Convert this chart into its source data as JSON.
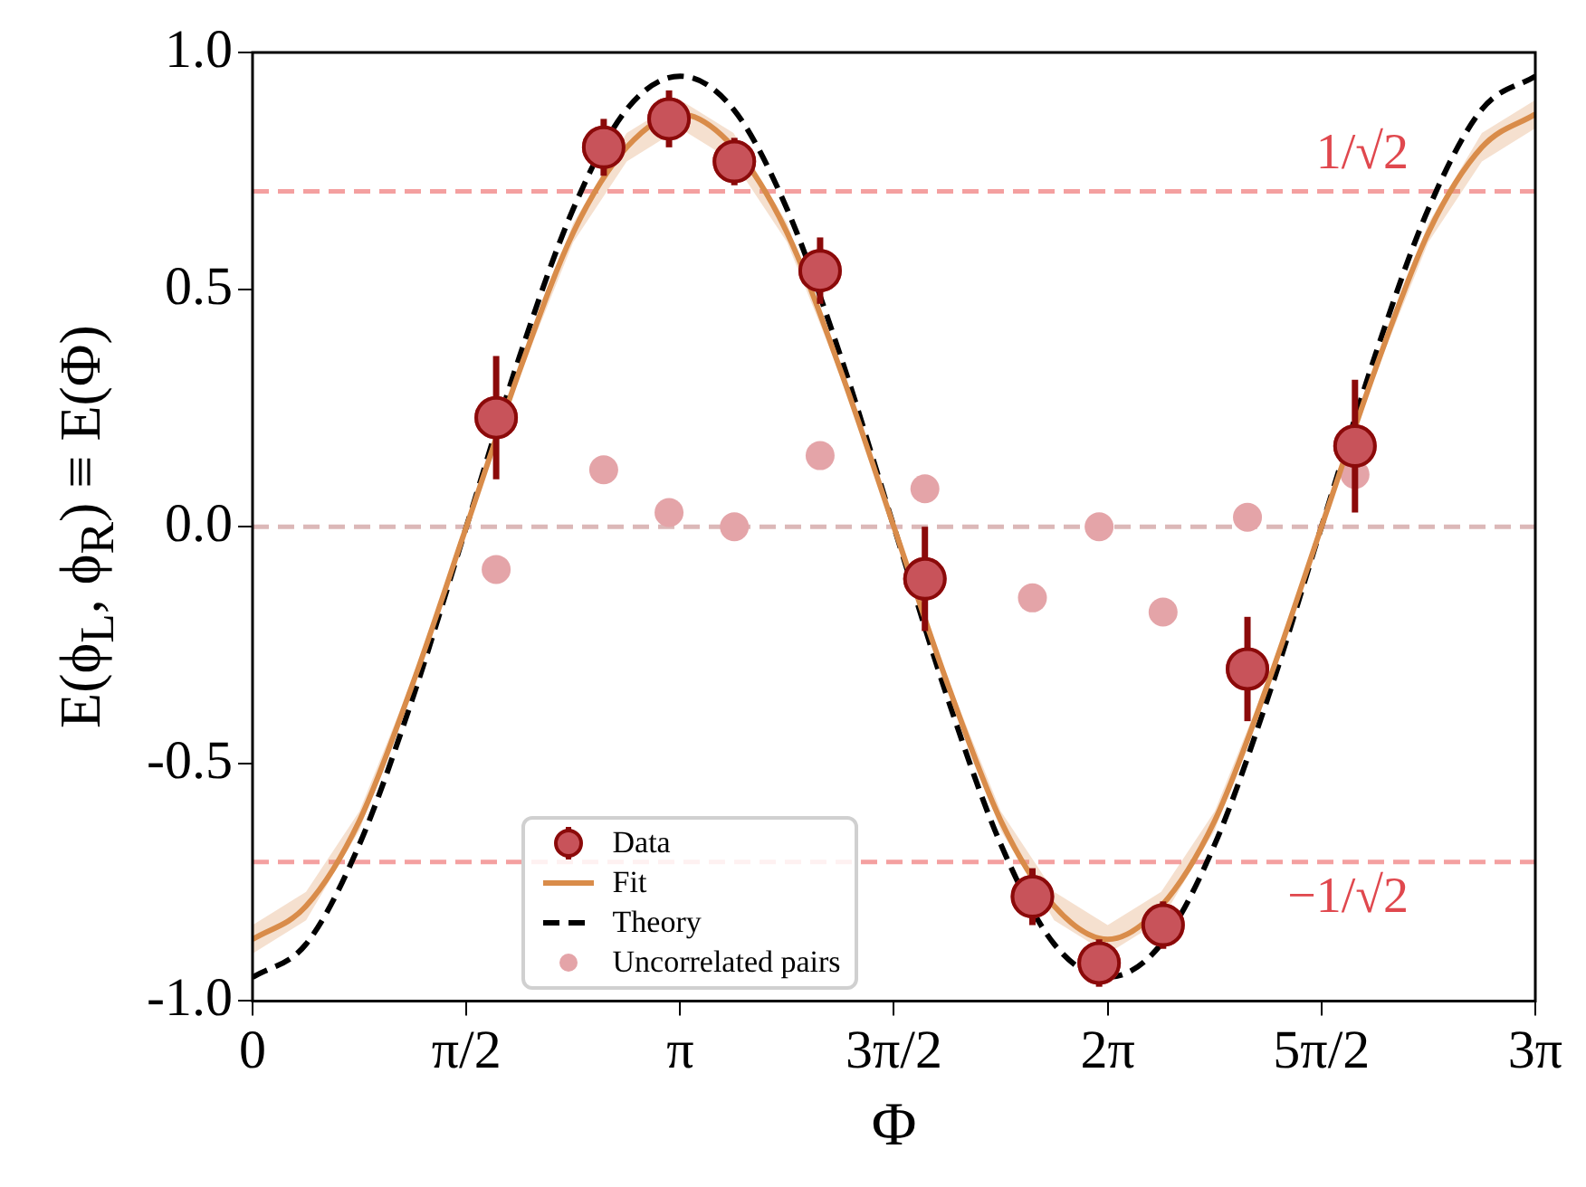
{
  "chart_data": {
    "type": "scatter",
    "xlabel": "Φ",
    "ylabel": "E(ϕ$_{L}$, ϕ$_{R}$) ≡ E(Φ)",
    "xlim": [
      0,
      9.4248
    ],
    "ylim": [
      -1.0,
      1.0
    ],
    "xticks": [
      {
        "value": 0,
        "label": "0"
      },
      {
        "value": 1.5708,
        "label": "π/2"
      },
      {
        "value": 3.1416,
        "label": "π"
      },
      {
        "value": 4.7124,
        "label": "3π/2"
      },
      {
        "value": 6.2832,
        "label": "2π"
      },
      {
        "value": 7.854,
        "label": "5π/2"
      },
      {
        "value": 9.4248,
        "label": "3π"
      }
    ],
    "yticks": [
      {
        "value": -1,
        "label": "-1.0"
      },
      {
        "value": -0.5,
        "label": "-0.5"
      },
      {
        "value": 0,
        "label": "0.0"
      },
      {
        "value": 0.5,
        "label": "0.5"
      },
      {
        "value": 1,
        "label": "1.0"
      }
    ],
    "grid": false,
    "legend": "bottom left",
    "ref_lines": [
      {
        "axis": "y",
        "value": 0.7071,
        "label": "1/√2",
        "color": "#f4a0a0",
        "line_style": "dashed"
      },
      {
        "axis": "y",
        "value": 0,
        "label": null,
        "color": "#dcb8b8",
        "line_style": "dashed"
      },
      {
        "axis": "y",
        "value": -0.7071,
        "label": "−1/√2",
        "color": "#f4a0a0",
        "line_style": "dashed"
      }
    ],
    "series": [
      {
        "name": "Data",
        "color": "#c8535a",
        "marker": "circle",
        "x": [
          1.79,
          2.58,
          3.06,
          3.54,
          4.17,
          4.94,
          5.73,
          6.22,
          6.69,
          7.31,
          8.1
        ],
        "values": [
          0.23,
          0.8,
          0.86,
          0.77,
          0.54,
          -0.11,
          -0.78,
          -0.92,
          -0.84,
          -0.3,
          0.17
        ],
        "errors": [
          0.13,
          0.06,
          0.06,
          0.05,
          0.07,
          0.11,
          0.06,
          0.05,
          0.05,
          0.11,
          0.14
        ]
      },
      {
        "name": "Fit",
        "type": "line",
        "color": "#d98c4a",
        "marker": "none",
        "line_style": "solid",
        "x": [
          0,
          0.393,
          0.785,
          1.178,
          1.571,
          1.963,
          2.356,
          2.749,
          3.142,
          3.534,
          3.927,
          4.32,
          4.712,
          5.105,
          5.498,
          5.89,
          6.283,
          6.676,
          7.069,
          7.461,
          7.854,
          8.247,
          8.639,
          9.032,
          9.4248
        ],
        "values": [
          -0.87,
          -0.8,
          -0.62,
          -0.33,
          0,
          0.33,
          0.62,
          0.8,
          0.87,
          0.8,
          0.62,
          0.33,
          0,
          -0.33,
          -0.62,
          -0.8,
          -0.87,
          -0.8,
          -0.62,
          -0.33,
          0,
          0.33,
          0.62,
          0.8,
          0.87
        ],
        "lower": [
          -0.9,
          -0.83,
          -0.64,
          -0.34,
          -0.01,
          0.32,
          0.6,
          0.77,
          0.84,
          0.77,
          0.6,
          0.32,
          -0.01,
          -0.34,
          -0.64,
          -0.83,
          -0.9,
          -0.83,
          -0.64,
          -0.34,
          -0.01,
          0.32,
          0.6,
          0.77,
          0.84
        ],
        "upper": [
          -0.84,
          -0.77,
          -0.6,
          -0.32,
          0.01,
          0.34,
          0.64,
          0.83,
          0.9,
          0.83,
          0.64,
          0.34,
          0.01,
          -0.32,
          -0.6,
          -0.77,
          -0.84,
          -0.77,
          -0.6,
          -0.32,
          0.01,
          0.34,
          0.64,
          0.83,
          0.9
        ]
      },
      {
        "name": "Theory",
        "type": "line",
        "color": "#000000",
        "marker": "none",
        "line_style": "dashed",
        "x": [
          0,
          0.393,
          0.785,
          1.178,
          1.571,
          1.963,
          2.356,
          2.749,
          3.142,
          3.534,
          3.927,
          4.32,
          4.712,
          5.105,
          5.498,
          5.89,
          6.283,
          6.676,
          7.069,
          7.461,
          7.854,
          8.247,
          8.639,
          9.032,
          9.4248
        ],
        "values": [
          -0.95,
          -0.88,
          -0.67,
          -0.36,
          0,
          0.36,
          0.67,
          0.88,
          0.95,
          0.88,
          0.67,
          0.36,
          0,
          -0.36,
          -0.67,
          -0.88,
          -0.95,
          -0.88,
          -0.67,
          -0.36,
          0,
          0.36,
          0.67,
          0.88,
          0.95
        ]
      },
      {
        "name": "Uncorrelated pairs",
        "color": "#e4a4a8",
        "marker": "circle",
        "x": [
          1.79,
          2.58,
          3.06,
          3.54,
          4.17,
          4.94,
          5.73,
          6.22,
          6.69,
          7.31,
          8.1
        ],
        "values": [
          -0.09,
          0.12,
          0.03,
          0.0,
          0.15,
          0.08,
          -0.15,
          0.0,
          -0.18,
          0.02,
          0.11
        ]
      }
    ]
  }
}
